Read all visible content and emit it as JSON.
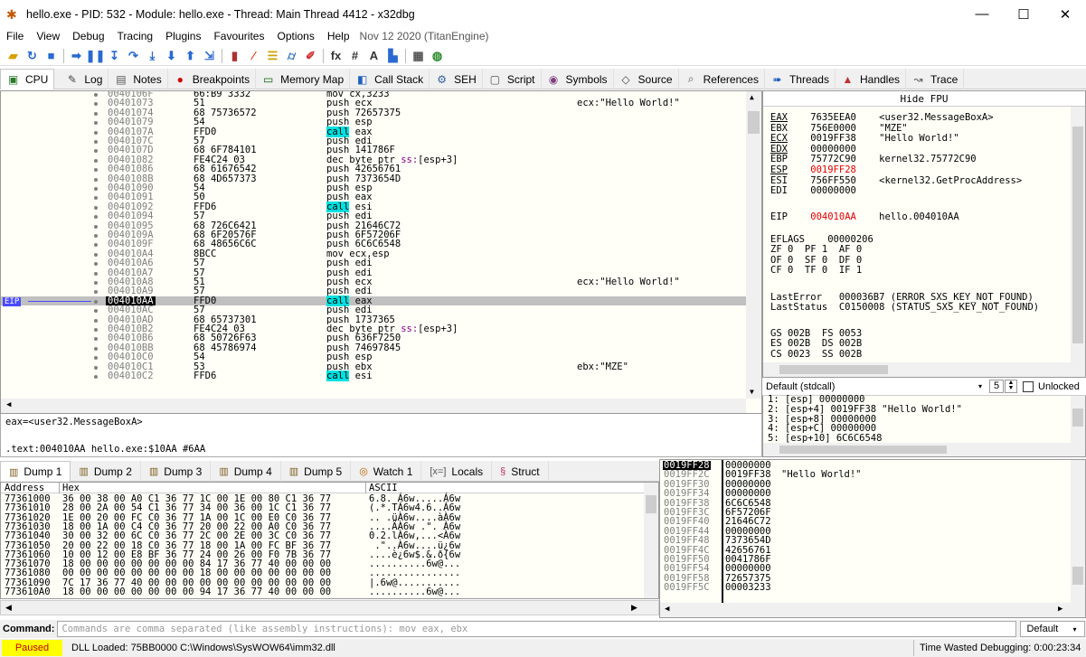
{
  "window": {
    "title": "hello.exe - PID: 532 - Module: hello.exe - Thread: Main Thread 4412 - x32dbg",
    "min": "—",
    "max": "☐",
    "close": "✕"
  },
  "menu": [
    "File",
    "View",
    "Debug",
    "Tracing",
    "Plugins",
    "Favourites",
    "Options",
    "Help"
  ],
  "menu_date": "Nov 12 2020 (TitanEngine)",
  "toolbar_icons": [
    "open-icon",
    "restart-icon",
    "stop-icon",
    "run-icon",
    "pause-icon",
    "step-into-icon",
    "step-over-icon",
    "trace-into-icon",
    "trace-over-icon",
    "execute-till-return-icon",
    "run-to-user-code-icon",
    "scylla-icon",
    "comment-icon",
    "label-icon",
    "bookmark-icon",
    "function-icon",
    "fx-icon",
    "hash-icon",
    "font-icon",
    "strings-icon",
    "calculator-icon",
    "globe-icon"
  ],
  "tabs": [
    {
      "label": "CPU",
      "icon": "▣",
      "color": "#2a7a2a"
    },
    {
      "label": "Log",
      "icon": "✎",
      "color": "#444"
    },
    {
      "label": "Notes",
      "icon": "▤",
      "color": "#555"
    },
    {
      "label": "Breakpoints",
      "icon": "●",
      "color": "#d00000"
    },
    {
      "label": "Memory Map",
      "icon": "▭",
      "color": "#006600"
    },
    {
      "label": "Call Stack",
      "icon": "◧",
      "color": "#2060c0"
    },
    {
      "label": "SEH",
      "icon": "⚙",
      "color": "#3060a0"
    },
    {
      "label": "Script",
      "icon": "▢",
      "color": "#555"
    },
    {
      "label": "Symbols",
      "icon": "◉",
      "color": "#804080"
    },
    {
      "label": "Source",
      "icon": "◇",
      "color": "#444"
    },
    {
      "label": "References",
      "icon": "⌕",
      "color": "#555"
    },
    {
      "label": "Threads",
      "icon": "➠",
      "color": "#2060c0"
    },
    {
      "label": "Handles",
      "icon": "▲",
      "color": "#c03030"
    },
    {
      "label": "Trace",
      "icon": "↝",
      "color": "#555"
    }
  ],
  "disasm": [
    {
      "addr": "0040106F",
      "bytes": "66:B9 3332",
      "ins": "mov cx,3233",
      "cmt": ""
    },
    {
      "addr": "00401073",
      "bytes": "51",
      "ins": "push ecx",
      "cmt": "ecx:\"Hello World!\""
    },
    {
      "addr": "00401074",
      "bytes": "68 75736572",
      "ins": "push 72657375",
      "cmt": ""
    },
    {
      "addr": "00401079",
      "bytes": "54",
      "ins": "push esp",
      "cmt": ""
    },
    {
      "addr": "0040107A",
      "bytes": "FFD0",
      "ins": "call eax",
      "cmt": "",
      "call": true
    },
    {
      "addr": "0040107C",
      "bytes": "57",
      "ins": "push edi",
      "cmt": ""
    },
    {
      "addr": "0040107D",
      "bytes": "68 6F784101",
      "ins": "push 141786F",
      "cmt": ""
    },
    {
      "addr": "00401082",
      "bytes": "FE4C24 03",
      "ins": "dec byte ptr ss:[esp+3]",
      "cmt": ""
    },
    {
      "addr": "00401086",
      "bytes": "68 61676542",
      "ins": "push 42656761",
      "cmt": ""
    },
    {
      "addr": "0040108B",
      "bytes": "68 4D657373",
      "ins": "push 7373654D",
      "cmt": ""
    },
    {
      "addr": "00401090",
      "bytes": "54",
      "ins": "push esp",
      "cmt": ""
    },
    {
      "addr": "00401091",
      "bytes": "50",
      "ins": "push eax",
      "cmt": ""
    },
    {
      "addr": "00401092",
      "bytes": "FFD6",
      "ins": "call esi",
      "cmt": "",
      "call": true
    },
    {
      "addr": "00401094",
      "bytes": "57",
      "ins": "push edi",
      "cmt": ""
    },
    {
      "addr": "00401095",
      "bytes": "68 726C6421",
      "ins": "push 21646C72",
      "cmt": ""
    },
    {
      "addr": "0040109A",
      "bytes": "68 6F20576F",
      "ins": "push 6F57206F",
      "cmt": ""
    },
    {
      "addr": "0040109F",
      "bytes": "68 48656C6C",
      "ins": "push 6C6C6548",
      "cmt": ""
    },
    {
      "addr": "004010A4",
      "bytes": "8BCC",
      "ins": "mov ecx,esp",
      "cmt": ""
    },
    {
      "addr": "004010A6",
      "bytes": "57",
      "ins": "push edi",
      "cmt": ""
    },
    {
      "addr": "004010A7",
      "bytes": "57",
      "ins": "push edi",
      "cmt": ""
    },
    {
      "addr": "004010A8",
      "bytes": "51",
      "ins": "push ecx",
      "cmt": "ecx:\"Hello World!\""
    },
    {
      "addr": "004010A9",
      "bytes": "57",
      "ins": "push edi",
      "cmt": ""
    },
    {
      "addr": "004010AA",
      "bytes": "FFD0",
      "ins": "call eax",
      "cmt": "",
      "call": true,
      "sel": true
    },
    {
      "addr": "004010AC",
      "bytes": "57",
      "ins": "push edi",
      "cmt": ""
    },
    {
      "addr": "004010AD",
      "bytes": "68 65737301",
      "ins": "push 1737365",
      "cmt": ""
    },
    {
      "addr": "004010B2",
      "bytes": "FE4C24 03",
      "ins": "dec byte ptr ss:[esp+3]",
      "cmt": ""
    },
    {
      "addr": "004010B6",
      "bytes": "68 50726F63",
      "ins": "push 636F7250",
      "cmt": ""
    },
    {
      "addr": "004010BB",
      "bytes": "68 45786974",
      "ins": "push 74697845",
      "cmt": ""
    },
    {
      "addr": "004010C0",
      "bytes": "54",
      "ins": "push esp",
      "cmt": ""
    },
    {
      "addr": "004010C1",
      "bytes": "53",
      "ins": "push ebx",
      "cmt": "ebx:\"MZE\""
    },
    {
      "addr": "004010C2",
      "bytes": "FFD6",
      "ins": "call esi",
      "cmt": "",
      "call": true
    }
  ],
  "eip_label": "EIP",
  "info": {
    "line1": "eax=<user32.MessageBoxA>",
    "line2": ".text:004010AA hello.exe:$10AA #6AA"
  },
  "regs": {
    "header": "Hide FPU",
    "lines": [
      {
        "name": "EAX",
        "val": "7635EEA0",
        "cmt": "<user32.MessageBoxA>",
        "ul": true
      },
      {
        "name": "EBX",
        "val": "756E0000",
        "cmt": "\"MZE\""
      },
      {
        "name": "ECX",
        "val": "0019FF38",
        "cmt": "\"Hello World!\"",
        "ul": true
      },
      {
        "name": "EDX",
        "val": "00000000",
        "cmt": "",
        "ul": true
      },
      {
        "name": "EBP",
        "val": "75772C90",
        "cmt": "kernel32.75772C90"
      },
      {
        "name": "ESP",
        "val": "0019FF28",
        "cmt": "",
        "red": true,
        "ul": true
      },
      {
        "name": "ESI",
        "val": "756FF550",
        "cmt": "<kernel32.GetProcAddress>"
      },
      {
        "name": "EDI",
        "val": "00000000",
        "cmt": ""
      }
    ],
    "eip": {
      "name": "EIP",
      "val": "004010AA",
      "cmt": "hello.004010AA"
    },
    "eflags": "EFLAGS    00000206",
    "flags": [
      "ZF 0  PF 1  AF 0",
      "OF 0  SF 0  DF 0",
      "CF 0  TF 0  IF 1"
    ],
    "lasterror": "LastError   000036B7 (ERROR_SXS_KEY_NOT_FOUND)",
    "laststatus": "LastStatus  C0150008 (STATUS_SXS_KEY_NOT_FOUND)",
    "segs": [
      "GS 002B  FS 0053",
      "ES 002B  DS 002B",
      "CS 0023  SS 002B"
    ]
  },
  "callconv": {
    "label": "Default (stdcall)",
    "count": "5",
    "unlocked": "Unlocked"
  },
  "args": [
    "1: [esp] 00000000",
    "2: [esp+4] 0019FF38 \"Hello World!\"",
    "3: [esp+8] 00000000",
    "4: [esp+C] 00000000",
    "5: [esp+10] 6C6C6548"
  ],
  "dumptabs": [
    {
      "label": "Dump 1",
      "icon": "▥"
    },
    {
      "label": "Dump 2",
      "icon": "▥"
    },
    {
      "label": "Dump 3",
      "icon": "▥"
    },
    {
      "label": "Dump 4",
      "icon": "▥"
    },
    {
      "label": "Dump 5",
      "icon": "▥"
    },
    {
      "label": "Watch 1",
      "icon": "◎"
    },
    {
      "label": "Locals",
      "icon": "[x=]"
    },
    {
      "label": "Struct",
      "icon": "§"
    }
  ],
  "dump_hdr": {
    "addr": "Address",
    "hex": "Hex",
    "ascii": "ASCII"
  },
  "dump": [
    {
      "a": "77361000",
      "h": "36 00 38 00 A0 C1 36 77 1C 00 1E 00 80 C1 36 77",
      "s": "6.8. Á6w.....Á6w"
    },
    {
      "a": "77361010",
      "h": "28 00 2A 00 54 C1 36 77 34 00 36 00 1C C1 36 77",
      "s": "(.*.TÁ6w4.6..Á6w"
    },
    {
      "a": "77361020",
      "h": "1E 00 20 00 FC C0 36 77 1A 00 1C 00 E0 C0 36 77",
      "s": ".. .üÀ6w....àÀ6w"
    },
    {
      "a": "77361030",
      "h": "18 00 1A 00 C4 C0 36 77 20 00 22 00 A0 C0 36 77",
      "s": "....ÄÀ6w .\". À6w"
    },
    {
      "a": "77361040",
      "h": "30 00 32 00 6C C0 36 77 2C 00 2E 00 3C C0 36 77",
      "s": "0.2.lÀ6w,...<À6w"
    },
    {
      "a": "77361050",
      "h": "20 00 22 00 18 C0 36 77 18 00 1A 00 FC BF 36 77",
      "s": " .\"..À6w....ü¿6w"
    },
    {
      "a": "77361060",
      "h": "10 00 12 00 E8 BF 36 77 24 00 26 00 F0 7B 36 77",
      "s": "....è¿6w$.&.ð{6w"
    },
    {
      "a": "77361070",
      "h": "18 00 00 00 00 00 00 00 84 17 36 77 40 00 00 00",
      "s": "..........6w@..."
    },
    {
      "a": "77361080",
      "h": "00 00 00 00 00 00 00 00 18 00 00 00 00 00 00 00",
      "s": "................"
    },
    {
      "a": "77361090",
      "h": "7C 17 36 77 40 00 00 00 00 00 00 00 00 00 00 00",
      "s": "|.6w@..........."
    },
    {
      "a": "773610A0",
      "h": "18 00 00 00 00 00 00 00 94 17 36 77 40 00 00 00",
      "s": "..........6w@..."
    }
  ],
  "stack": [
    {
      "a": "0019FF28",
      "v": "00000000",
      "c": "",
      "cur": true
    },
    {
      "a": "0019FF2C",
      "v": "0019FF38",
      "c": "\"Hello World!\""
    },
    {
      "a": "0019FF30",
      "v": "00000000",
      "c": ""
    },
    {
      "a": "0019FF34",
      "v": "00000000",
      "c": ""
    },
    {
      "a": "0019FF38",
      "v": "6C6C6548",
      "c": ""
    },
    {
      "a": "0019FF3C",
      "v": "6F57206F",
      "c": ""
    },
    {
      "a": "0019FF40",
      "v": "21646C72",
      "c": ""
    },
    {
      "a": "0019FF44",
      "v": "00000000",
      "c": ""
    },
    {
      "a": "0019FF48",
      "v": "7373654D",
      "c": ""
    },
    {
      "a": "0019FF4C",
      "v": "42656761",
      "c": ""
    },
    {
      "a": "0019FF50",
      "v": "0041786F",
      "c": ""
    },
    {
      "a": "0019FF54",
      "v": "00000000",
      "c": ""
    },
    {
      "a": "0019FF58",
      "v": "72657375",
      "c": ""
    },
    {
      "a": "0019FF5C",
      "v": "00003233",
      "c": ""
    }
  ],
  "command": {
    "label": "Command:",
    "placeholder": "Commands are comma separated (like assembly instructions): mov eax, ebx",
    "mode": "Default"
  },
  "status": {
    "state": "Paused",
    "message": "DLL Loaded: 75BB0000 C:\\Windows\\SysWOW64\\imm32.dll",
    "time": "Time Wasted Debugging: 0:00:23:34"
  },
  "colors": {
    "call_bg": "#00e0e0",
    "eip_arrow": "#4a4aff",
    "paused_bg": "#ffff00",
    "paused_fg": "#c00000",
    "red": "#e00000"
  }
}
